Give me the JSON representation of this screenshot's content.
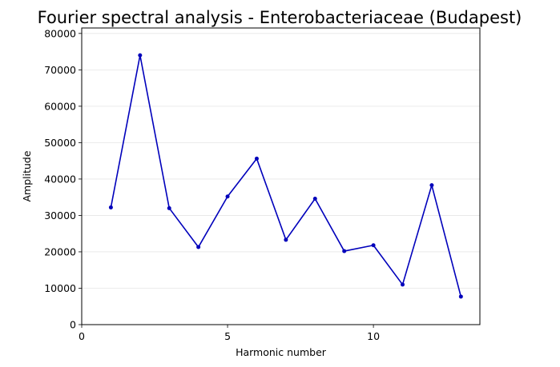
{
  "chart_data": {
    "type": "line",
    "title": "Fourier spectral analysis - Enterobacteriaceae (Budapest)",
    "xlabel": "Harmonic number",
    "ylabel": "Amplitude",
    "xlim": [
      0,
      13.65
    ],
    "ylim": [
      0,
      81500
    ],
    "xticks": [
      0,
      5,
      10
    ],
    "yticks": [
      0,
      10000,
      20000,
      30000,
      40000,
      50000,
      60000,
      70000,
      80000
    ],
    "grid": "horizontal",
    "legend": "none",
    "series": [
      {
        "color": "#0000bb",
        "x": [
          1,
          2,
          3,
          4,
          5,
          6,
          7,
          8,
          9,
          10,
          11,
          12,
          13
        ],
        "y": [
          32200,
          74000,
          32000,
          21300,
          35200,
          45600,
          23300,
          34600,
          20200,
          21800,
          11000,
          38300,
          7700
        ]
      }
    ]
  }
}
